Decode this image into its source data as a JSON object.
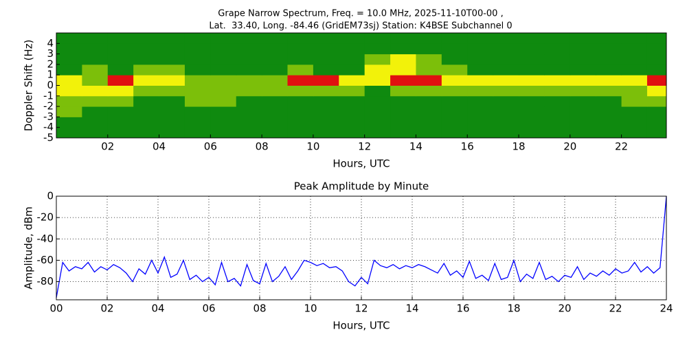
{
  "chart_data": [
    {
      "type": "heatmap",
      "title": [
        "Grape Narrow Spectrum, Freq. = 10.0 MHz, 2025-11-10T00-00 ,",
        "Lat.  33.40, Long. -84.46 (GridEM73sj) Station: K4BSE Subchannel 0"
      ],
      "xlabel": "Hours, UTC",
      "ylabel": "Doppler Shift (Hz)",
      "x": [
        0,
        1,
        2,
        3,
        4,
        5,
        6,
        7,
        8,
        9,
        10,
        11,
        12,
        13,
        14,
        15,
        16,
        17,
        18,
        19,
        20,
        21,
        22,
        23
      ],
      "y": [
        -5,
        -4,
        -3,
        -2,
        -1,
        0,
        1,
        2,
        3,
        4
      ],
      "z": [
        [
          0,
          0,
          0,
          0,
          0,
          0,
          0,
          0,
          0,
          0,
          0,
          0,
          0,
          0,
          0,
          0,
          0,
          0,
          0,
          0,
          0,
          0,
          0,
          0
        ],
        [
          0,
          0,
          0,
          0,
          0,
          0,
          0,
          0,
          0,
          0,
          0,
          0,
          0,
          0,
          0,
          0,
          0,
          0,
          0,
          0,
          0,
          0,
          0,
          0
        ],
        [
          1,
          0,
          0,
          0,
          0,
          0,
          0,
          0,
          0,
          0,
          0,
          0,
          0,
          0,
          0,
          0,
          0,
          0,
          0,
          0,
          0,
          0,
          0,
          0
        ],
        [
          1,
          1,
          1,
          0,
          0,
          1,
          1,
          0,
          0,
          0,
          0,
          0,
          0,
          0,
          0,
          0,
          0,
          0,
          0,
          0,
          0,
          0,
          1,
          1
        ],
        [
          2,
          2,
          2,
          1,
          1,
          1,
          1,
          1,
          1,
          1,
          1,
          1,
          0,
          1,
          1,
          1,
          1,
          1,
          1,
          1,
          1,
          1,
          1,
          2
        ],
        [
          2,
          1,
          3,
          2,
          2,
          1,
          1,
          1,
          1,
          3,
          3,
          2,
          2,
          3,
          3,
          2,
          2,
          2,
          2,
          2,
          2,
          2,
          2,
          3
        ],
        [
          0,
          1,
          0,
          1,
          1,
          0,
          0,
          0,
          0,
          1,
          0,
          0,
          2,
          2,
          1,
          1,
          0,
          0,
          0,
          0,
          0,
          0,
          0,
          0
        ],
        [
          0,
          0,
          0,
          0,
          0,
          0,
          0,
          0,
          0,
          0,
          0,
          0,
          1,
          2,
          1,
          0,
          0,
          0,
          0,
          0,
          0,
          0,
          0,
          0
        ],
        [
          0,
          0,
          0,
          0,
          0,
          0,
          0,
          0,
          0,
          0,
          0,
          0,
          0,
          0,
          0,
          0,
          0,
          0,
          0,
          0,
          0,
          0,
          0,
          0
        ],
        [
          0,
          0,
          0,
          0,
          0,
          0,
          0,
          0,
          0,
          0,
          0,
          0,
          0,
          0,
          0,
          0,
          0,
          0,
          0,
          0,
          0,
          0,
          0,
          0
        ]
      ],
      "colors": [
        "#0f8a0f",
        "#7cbf0a",
        "#f2f20a",
        "#e01010"
      ],
      "xlim": [
        0,
        23.75
      ],
      "ylim": [
        -5,
        5
      ],
      "xticks": [
        {
          "value": 2,
          "label": "02"
        },
        {
          "value": 4,
          "label": "04"
        },
        {
          "value": 6,
          "label": "06"
        },
        {
          "value": 8,
          "label": "08"
        },
        10,
        12,
        14,
        16,
        18,
        20,
        22
      ],
      "yticks": [
        -5,
        -4,
        -3,
        -2,
        -1,
        0,
        1,
        2,
        3,
        4
      ]
    },
    {
      "type": "line",
      "title": "Peak Amplitude by Minute",
      "xlabel": "Hours, UTC",
      "ylabel": "Amplitude, dBm",
      "x": [
        0,
        0.25,
        0.5,
        0.75,
        1,
        1.25,
        1.5,
        1.75,
        2,
        2.25,
        2.5,
        2.75,
        3,
        3.25,
        3.5,
        3.75,
        4,
        4.25,
        4.5,
        4.75,
        5,
        5.25,
        5.5,
        5.75,
        6,
        6.25,
        6.5,
        6.75,
        7,
        7.25,
        7.5,
        7.75,
        8,
        8.25,
        8.5,
        8.75,
        9,
        9.25,
        9.5,
        9.75,
        10,
        10.25,
        10.5,
        10.75,
        11,
        11.25,
        11.5,
        11.75,
        12,
        12.25,
        12.5,
        12.75,
        13,
        13.25,
        13.5,
        13.75,
        14,
        14.25,
        14.5,
        14.75,
        15,
        15.25,
        15.5,
        15.75,
        16,
        16.25,
        16.5,
        16.75,
        17,
        17.25,
        17.5,
        17.75,
        18,
        18.25,
        18.5,
        18.75,
        19,
        19.25,
        19.5,
        19.75,
        20,
        20.25,
        20.5,
        20.75,
        21,
        21.25,
        21.5,
        21.75,
        22,
        22.25,
        22.5,
        22.75,
        23,
        23.25,
        23.5,
        23.75,
        24
      ],
      "series": [
        {
          "name": "Peak Amplitude",
          "color": "#0000ff",
          "values": [
            -95,
            -62,
            -70,
            -66,
            -68,
            -62,
            -71,
            -66,
            -69,
            -64,
            -67,
            -72,
            -80,
            -68,
            -73,
            -60,
            -72,
            -57,
            -76,
            -73,
            -60,
            -78,
            -74,
            -80,
            -76,
            -83,
            -62,
            -80,
            -77,
            -84,
            -64,
            -79,
            -82,
            -63,
            -80,
            -75,
            -66,
            -78,
            -70,
            -60,
            -62,
            -65,
            -63,
            -67,
            -66,
            -70,
            -80,
            -84,
            -76,
            -82,
            -60,
            -65,
            -67,
            -64,
            -68,
            -65,
            -67,
            -64,
            -66,
            -69,
            -72,
            -63,
            -74,
            -70,
            -76,
            -61,
            -77,
            -74,
            -79,
            -63,
            -78,
            -76,
            -60,
            -80,
            -73,
            -77,
            -62,
            -78,
            -75,
            -80,
            -74,
            -76,
            -66,
            -78,
            -72,
            -75,
            -70,
            -74,
            -68,
            -72,
            -70,
            -62,
            -71,
            -66,
            -72,
            -67,
            0
          ]
        }
      ],
      "xlim": [
        0,
        24
      ],
      "ylim": [
        -97,
        0
      ],
      "grid": true,
      "xticks": [
        {
          "value": 0,
          "label": "00"
        },
        {
          "value": 2,
          "label": "02"
        },
        {
          "value": 4,
          "label": "04"
        },
        {
          "value": 6,
          "label": "06"
        },
        {
          "value": 8,
          "label": "08"
        },
        10,
        12,
        14,
        16,
        18,
        20,
        22,
        24
      ],
      "yticks": [
        -80,
        -60,
        -40,
        -20,
        0
      ]
    }
  ]
}
